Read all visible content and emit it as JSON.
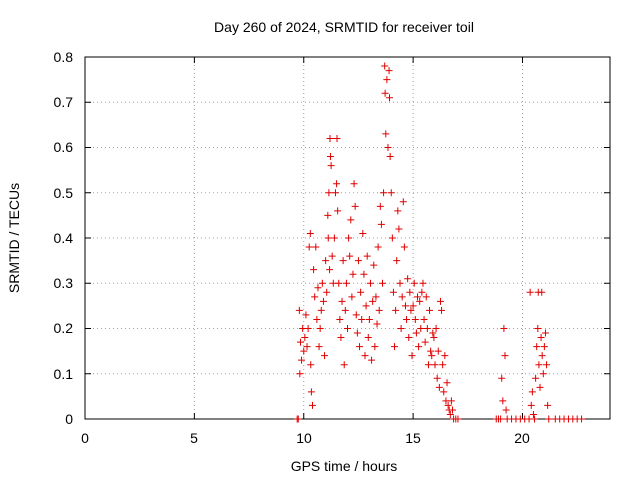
{
  "chart_data": {
    "type": "scatter",
    "title": "Day 260 of 2024, SRMTID for receiver toil",
    "xlabel": "GPS time / hours",
    "ylabel": "SRMTID / TECUs",
    "xlim": [
      0,
      24
    ],
    "ylim": [
      0,
      0.8
    ],
    "xticks": [
      "0",
      "5",
      "10",
      "15",
      "20"
    ],
    "xtick_values": [
      0,
      5,
      10,
      15,
      20
    ],
    "yticks": [
      "0",
      "0.1",
      "0.2",
      "0.3",
      "0.4",
      "0.5",
      "0.6",
      "0.7",
      "0.8"
    ],
    "ytick_values": [
      0,
      0.1,
      0.2,
      0.3,
      0.4,
      0.5,
      0.6,
      0.7,
      0.8
    ],
    "grid": true,
    "marker": "+",
    "color": "#e00000",
    "series": [
      {
        "name": "SRMTID",
        "points": [
          [
            9.7,
            0.0
          ],
          [
            9.75,
            0.0
          ],
          [
            9.8,
            0.24
          ],
          [
            9.82,
            0.1
          ],
          [
            9.85,
            0.17
          ],
          [
            9.9,
            0.13
          ],
          [
            9.95,
            0.2
          ],
          [
            10.0,
            0.15
          ],
          [
            10.05,
            0.18
          ],
          [
            10.1,
            0.23
          ],
          [
            10.15,
            0.16
          ],
          [
            10.2,
            0.2
          ],
          [
            10.25,
            0.38
          ],
          [
            10.3,
            0.41
          ],
          [
            10.32,
            0.12
          ],
          [
            10.35,
            0.06
          ],
          [
            10.4,
            0.03
          ],
          [
            10.45,
            0.33
          ],
          [
            10.5,
            0.27
          ],
          [
            10.55,
            0.38
          ],
          [
            10.6,
            0.22
          ],
          [
            10.65,
            0.29
          ],
          [
            10.7,
            0.16
          ],
          [
            10.75,
            0.2
          ],
          [
            10.8,
            0.24
          ],
          [
            10.85,
            0.3
          ],
          [
            10.9,
            0.26
          ],
          [
            10.95,
            0.14
          ],
          [
            11.0,
            0.35
          ],
          [
            11.05,
            0.28
          ],
          [
            11.1,
            0.45
          ],
          [
            11.12,
            0.4
          ],
          [
            11.15,
            0.5
          ],
          [
            11.18,
            0.33
          ],
          [
            11.2,
            0.62
          ],
          [
            11.22,
            0.58
          ],
          [
            11.25,
            0.56
          ],
          [
            11.3,
            0.36
          ],
          [
            11.35,
            0.3
          ],
          [
            11.4,
            0.4
          ],
          [
            11.45,
            0.5
          ],
          [
            11.5,
            0.52
          ],
          [
            11.52,
            0.62
          ],
          [
            11.55,
            0.46
          ],
          [
            11.6,
            0.3
          ],
          [
            11.65,
            0.22
          ],
          [
            11.7,
            0.18
          ],
          [
            11.75,
            0.26
          ],
          [
            11.8,
            0.35
          ],
          [
            11.85,
            0.12
          ],
          [
            11.9,
            0.24
          ],
          [
            11.95,
            0.3
          ],
          [
            12.0,
            0.2
          ],
          [
            12.05,
            0.4
          ],
          [
            12.1,
            0.36
          ],
          [
            12.15,
            0.44
          ],
          [
            12.2,
            0.27
          ],
          [
            12.25,
            0.32
          ],
          [
            12.3,
            0.52
          ],
          [
            12.35,
            0.47
          ],
          [
            12.4,
            0.23
          ],
          [
            12.45,
            0.19
          ],
          [
            12.5,
            0.35
          ],
          [
            12.55,
            0.16
          ],
          [
            12.6,
            0.28
          ],
          [
            12.65,
            0.22
          ],
          [
            12.7,
            0.41
          ],
          [
            12.75,
            0.32
          ],
          [
            12.8,
            0.14
          ],
          [
            12.85,
            0.25
          ],
          [
            12.9,
            0.36
          ],
          [
            12.95,
            0.18
          ],
          [
            13.0,
            0.22
          ],
          [
            13.05,
            0.3
          ],
          [
            13.1,
            0.13
          ],
          [
            13.15,
            0.26
          ],
          [
            13.2,
            0.34
          ],
          [
            13.25,
            0.16
          ],
          [
            13.3,
            0.27
          ],
          [
            13.35,
            0.21
          ],
          [
            13.4,
            0.38
          ],
          [
            13.45,
            0.24
          ],
          [
            13.5,
            0.47
          ],
          [
            13.55,
            0.43
          ],
          [
            13.6,
            0.3
          ],
          [
            13.65,
            0.5
          ],
          [
            13.7,
            0.78
          ],
          [
            13.72,
            0.72
          ],
          [
            13.75,
            0.63
          ],
          [
            13.8,
            0.75
          ],
          [
            13.85,
            0.6
          ],
          [
            13.9,
            0.77
          ],
          [
            13.92,
            0.71
          ],
          [
            13.95,
            0.58
          ],
          [
            14.0,
            0.5
          ],
          [
            14.05,
            0.4
          ],
          [
            14.1,
            0.28
          ],
          [
            14.15,
            0.16
          ],
          [
            14.2,
            0.24
          ],
          [
            14.25,
            0.35
          ],
          [
            14.3,
            0.46
          ],
          [
            14.35,
            0.42
          ],
          [
            14.4,
            0.3
          ],
          [
            14.45,
            0.2
          ],
          [
            14.5,
            0.27
          ],
          [
            14.55,
            0.48
          ],
          [
            14.6,
            0.38
          ],
          [
            14.65,
            0.25
          ],
          [
            14.7,
            0.22
          ],
          [
            14.75,
            0.31
          ],
          [
            14.8,
            0.18
          ],
          [
            14.85,
            0.28
          ],
          [
            14.9,
            0.24
          ],
          [
            14.95,
            0.14
          ],
          [
            15.0,
            0.25
          ],
          [
            15.05,
            0.3
          ],
          [
            15.1,
            0.22
          ],
          [
            15.15,
            0.19
          ],
          [
            15.2,
            0.27
          ],
          [
            15.25,
            0.16
          ],
          [
            15.3,
            0.26
          ],
          [
            15.35,
            0.2
          ],
          [
            15.4,
            0.28
          ],
          [
            15.45,
            0.3
          ],
          [
            15.5,
            0.22
          ],
          [
            15.55,
            0.17
          ],
          [
            15.6,
            0.27
          ],
          [
            15.65,
            0.2
          ],
          [
            15.7,
            0.12
          ],
          [
            15.75,
            0.24
          ],
          [
            15.8,
            0.15
          ],
          [
            15.85,
            0.14
          ],
          [
            15.9,
            0.19
          ],
          [
            15.95,
            0.18
          ],
          [
            16.0,
            0.12
          ],
          [
            16.05,
            0.2
          ],
          [
            16.1,
            0.09
          ],
          [
            16.15,
            0.15
          ],
          [
            16.2,
            0.07
          ],
          [
            16.25,
            0.26
          ],
          [
            16.3,
            0.24
          ],
          [
            16.35,
            0.12
          ],
          [
            16.4,
            0.06
          ],
          [
            16.45,
            0.14
          ],
          [
            16.5,
            0.04
          ],
          [
            16.55,
            0.08
          ],
          [
            16.6,
            0.03
          ],
          [
            16.65,
            0.02
          ],
          [
            16.7,
            0.01
          ],
          [
            16.75,
            0.04
          ],
          [
            16.8,
            0.02
          ],
          [
            16.85,
            0.0
          ],
          [
            16.95,
            0.0
          ],
          [
            17.05,
            0.0
          ],
          [
            18.8,
            0.0
          ],
          [
            18.9,
            0.0
          ],
          [
            19.0,
            0.0
          ],
          [
            19.05,
            0.09
          ],
          [
            19.1,
            0.04
          ],
          [
            19.15,
            0.2
          ],
          [
            19.2,
            0.14
          ],
          [
            19.25,
            0.02
          ],
          [
            19.3,
            0.0
          ],
          [
            19.5,
            0.0
          ],
          [
            19.7,
            0.0
          ],
          [
            19.9,
            0.0
          ],
          [
            20.1,
            0.0
          ],
          [
            20.3,
            0.0
          ],
          [
            20.35,
            0.28
          ],
          [
            20.4,
            0.03
          ],
          [
            20.45,
            0.06
          ],
          [
            20.5,
            0.01
          ],
          [
            20.55,
            0.0
          ],
          [
            20.6,
            0.09
          ],
          [
            20.65,
            0.16
          ],
          [
            20.7,
            0.2
          ],
          [
            20.72,
            0.28
          ],
          [
            20.75,
            0.12
          ],
          [
            20.8,
            0.07
          ],
          [
            20.85,
            0.18
          ],
          [
            20.88,
            0.28
          ],
          [
            20.9,
            0.14
          ],
          [
            20.95,
            0.1
          ],
          [
            21.0,
            0.16
          ],
          [
            21.05,
            0.19
          ],
          [
            21.1,
            0.12
          ],
          [
            21.15,
            0.03
          ],
          [
            21.2,
            0.0
          ],
          [
            21.5,
            0.0
          ],
          [
            21.7,
            0.0
          ],
          [
            21.9,
            0.0
          ],
          [
            22.1,
            0.0
          ],
          [
            22.3,
            0.0
          ],
          [
            22.5,
            0.0
          ],
          [
            22.7,
            0.0
          ]
        ]
      }
    ]
  }
}
